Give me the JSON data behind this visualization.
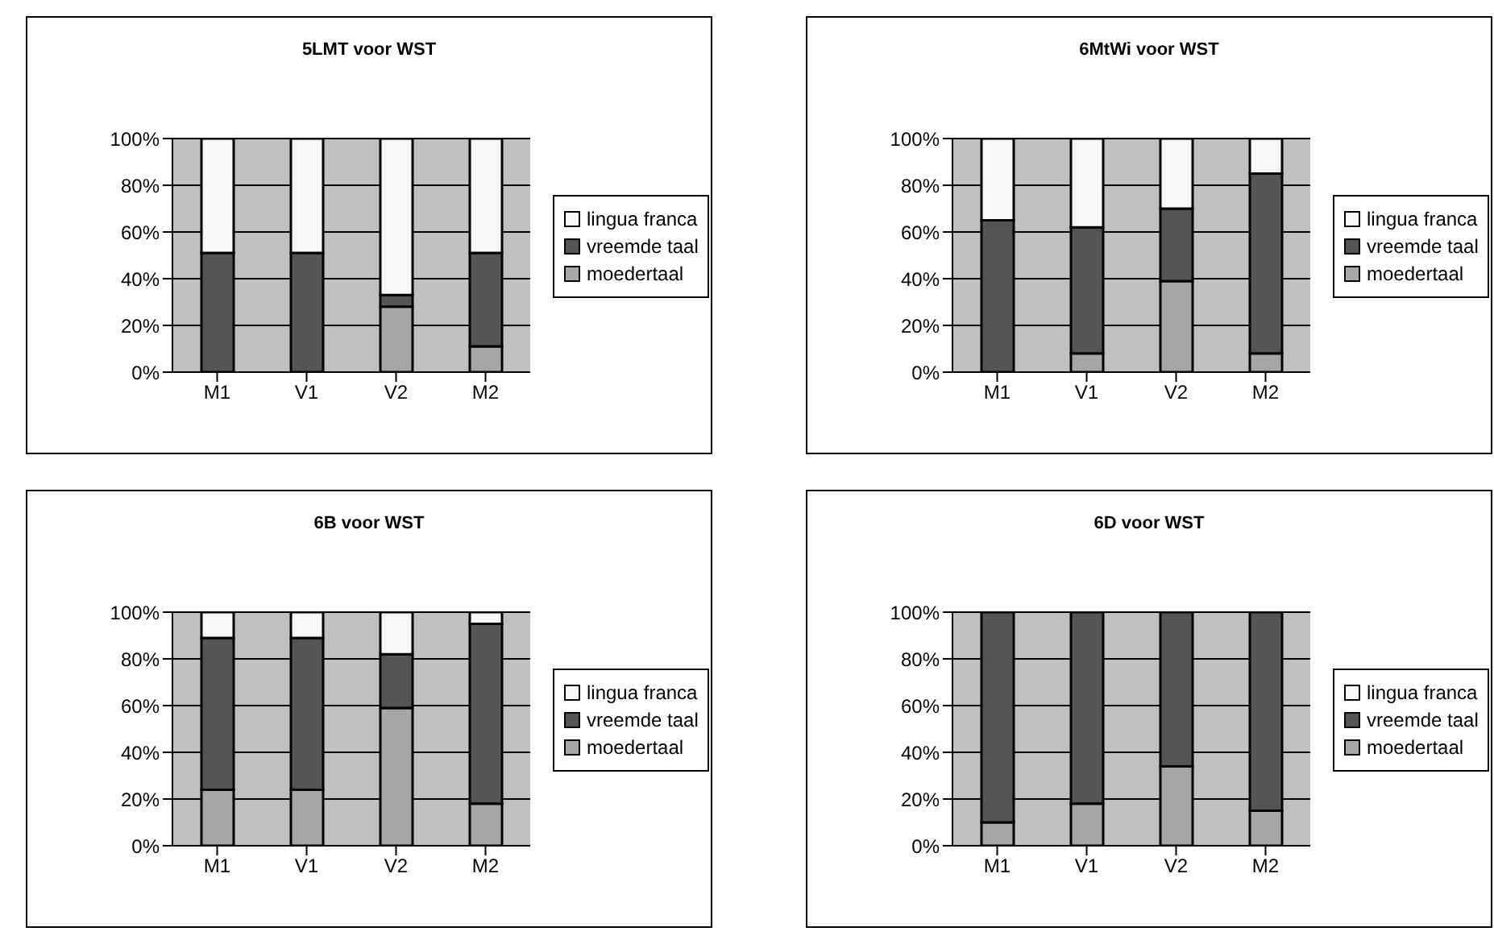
{
  "chart_data": [
    {
      "type": "bar",
      "title": "5LMT voor WST",
      "categories": [
        "M1",
        "V1",
        "V2",
        "M2"
      ],
      "stacked": true,
      "ylim": [
        0,
        100
      ],
      "yticks": [
        {
          "value": 0,
          "label": "0%"
        },
        {
          "value": 20,
          "label": "20%"
        },
        {
          "value": 40,
          "label": "40%"
        },
        {
          "value": 60,
          "label": "60%"
        },
        {
          "value": 80,
          "label": "80%"
        },
        {
          "value": 100,
          "label": "100%"
        }
      ],
      "grid": "y",
      "legend": "right",
      "series": [
        {
          "name": "moedertaal",
          "color": "#a6a6a6",
          "values": [
            0,
            0,
            28,
            11
          ]
        },
        {
          "name": "vreemde taal",
          "color": "#555555",
          "values": [
            51,
            51,
            5,
            40
          ]
        },
        {
          "name": "lingua franca",
          "color": "#f8f8f8",
          "values": [
            49,
            49,
            67,
            49
          ]
        }
      ]
    },
    {
      "type": "bar",
      "title": "6MtWi voor WST",
      "categories": [
        "M1",
        "V1",
        "V2",
        "M2"
      ],
      "stacked": true,
      "ylim": [
        0,
        100
      ],
      "yticks": [
        {
          "value": 0,
          "label": "0%"
        },
        {
          "value": 20,
          "label": "20%"
        },
        {
          "value": 40,
          "label": "40%"
        },
        {
          "value": 60,
          "label": "60%"
        },
        {
          "value": 80,
          "label": "80%"
        },
        {
          "value": 100,
          "label": "100%"
        }
      ],
      "grid": "y",
      "legend": "right",
      "series": [
        {
          "name": "moedertaal",
          "color": "#a6a6a6",
          "values": [
            0,
            8,
            39,
            8
          ]
        },
        {
          "name": "vreemde taal",
          "color": "#555555",
          "values": [
            65,
            54,
            31,
            77
          ]
        },
        {
          "name": "lingua franca",
          "color": "#f8f8f8",
          "values": [
            35,
            38,
            30,
            15
          ]
        }
      ]
    },
    {
      "type": "bar",
      "title": "6B voor WST",
      "categories": [
        "M1",
        "V1",
        "V2",
        "M2"
      ],
      "stacked": true,
      "ylim": [
        0,
        100
      ],
      "yticks": [
        {
          "value": 0,
          "label": "0%"
        },
        {
          "value": 20,
          "label": "20%"
        },
        {
          "value": 40,
          "label": "40%"
        },
        {
          "value": 60,
          "label": "60%"
        },
        {
          "value": 80,
          "label": "80%"
        },
        {
          "value": 100,
          "label": "100%"
        }
      ],
      "grid": "y",
      "legend": "right",
      "series": [
        {
          "name": "moedertaal",
          "color": "#a6a6a6",
          "values": [
            24,
            24,
            59,
            18
          ]
        },
        {
          "name": "vreemde taal",
          "color": "#555555",
          "values": [
            65,
            65,
            23,
            77
          ]
        },
        {
          "name": "lingua franca",
          "color": "#f8f8f8",
          "values": [
            11,
            11,
            18,
            5
          ]
        }
      ]
    },
    {
      "type": "bar",
      "title": "6D voor WST",
      "categories": [
        "M1",
        "V1",
        "V2",
        "M2"
      ],
      "stacked": true,
      "ylim": [
        0,
        100
      ],
      "yticks": [
        {
          "value": 0,
          "label": "0%"
        },
        {
          "value": 20,
          "label": "20%"
        },
        {
          "value": 40,
          "label": "40%"
        },
        {
          "value": 60,
          "label": "60%"
        },
        {
          "value": 80,
          "label": "80%"
        },
        {
          "value": 100,
          "label": "100%"
        }
      ],
      "grid": "y",
      "legend": "right",
      "series": [
        {
          "name": "moedertaal",
          "color": "#a6a6a6",
          "values": [
            10,
            18,
            34,
            15
          ]
        },
        {
          "name": "vreemde taal",
          "color": "#555555",
          "values": [
            90,
            82,
            66,
            85
          ]
        },
        {
          "name": "lingua franca",
          "color": "#f8f8f8",
          "values": [
            0,
            0,
            0,
            0
          ]
        }
      ]
    }
  ]
}
